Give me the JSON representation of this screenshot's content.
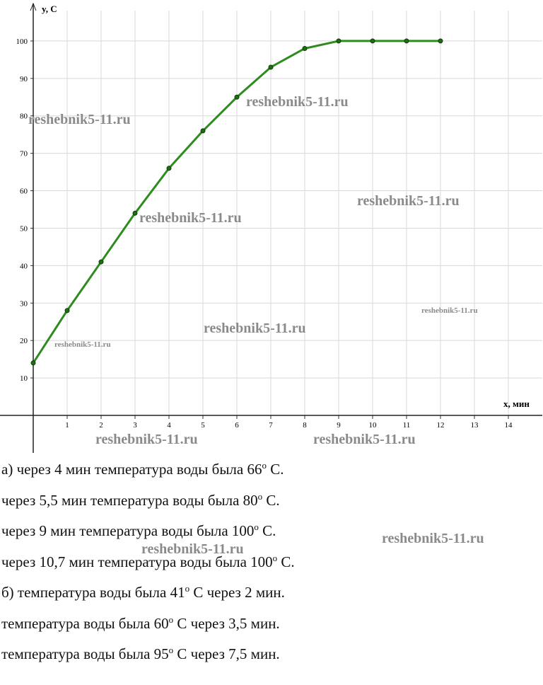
{
  "chart_data": {
    "type": "line",
    "x_label": "x, мин",
    "y_label": "y, С",
    "x": [
      0,
      1,
      2,
      3,
      4,
      5,
      6,
      7,
      8,
      9,
      10,
      11,
      12
    ],
    "series": [
      {
        "color": "#2e8b1e",
        "values": [
          14,
          28,
          41,
          54,
          66,
          76,
          85,
          93,
          98,
          100,
          100,
          100,
          100
        ]
      }
    ],
    "xlim": [
      0,
      15
    ],
    "ylim": [
      0,
      110
    ],
    "xticks": [
      1,
      2,
      3,
      4,
      5,
      6,
      7,
      8,
      9,
      10,
      11,
      12,
      13,
      14
    ],
    "yticks": [
      10,
      20,
      30,
      40,
      50,
      60,
      70,
      80,
      90,
      100
    ],
    "grid": true
  },
  "answer_lines": [
    {
      "before": "а) через 4 мин температура воды была 66",
      "sup": "o",
      "after": " С."
    },
    {
      "before": "через 5,5 мин температура воды была 80",
      "sup": "o",
      "after": " С."
    },
    {
      "before": "через 9 мин температура воды была 100",
      "sup": "o",
      "after": " С."
    },
    {
      "before": "через 10,7 мин температура воды была 100",
      "sup": "o",
      "after": " С."
    },
    {
      "before": "б) температура воды была 41",
      "sup": "o",
      "after": " С через 2 мин."
    },
    {
      "before": "температура воды была 60",
      "sup": "o",
      "after": " С через 3,5 мин."
    },
    {
      "before": "температура воды была 95",
      "sup": "o",
      "after": " С через 7,5 мин."
    }
  ],
  "watermarks": [
    "reshebnik5-11.ru",
    "reshebnik5-11.ru",
    "reshebnik5-11.ru",
    "reshebnik5-11.ru",
    "reshebnik5-11.ru",
    "reshebnik5-11.ru",
    "reshebnik5-11.ru",
    "reshebnik5-11.ru",
    "reshebnik5-11.ru",
    "reshebnik5-11.ru",
    "reshebnik5-11.ru"
  ]
}
